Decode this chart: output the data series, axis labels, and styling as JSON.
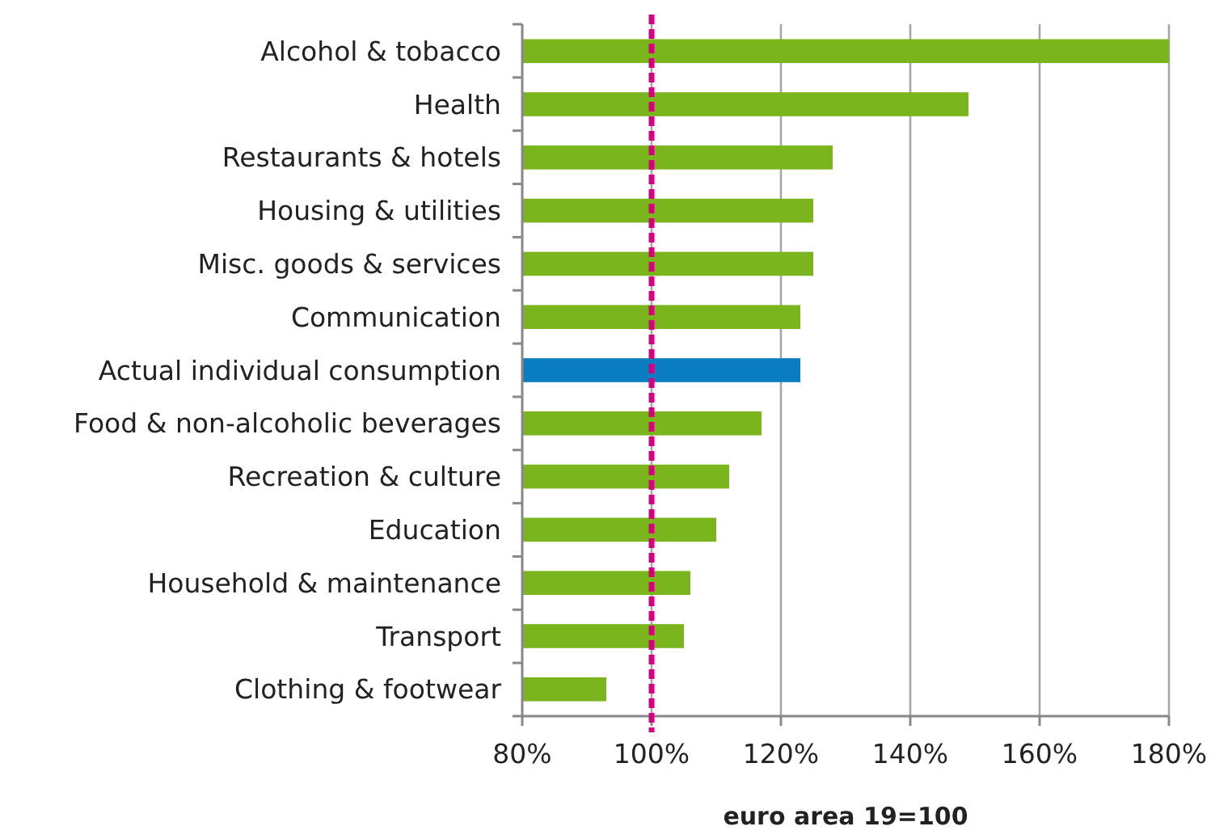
{
  "chart_data": {
    "type": "bar",
    "orientation": "horizontal",
    "xlabel": "euro area 19=100",
    "categories": [
      "Alcohol & tobacco",
      "Health",
      "Restaurants & hotels",
      "Housing & utilities",
      "Misc. goods & services",
      "Communication",
      "Actual individual consumption",
      "Food & non-alcoholic beverages",
      "Recreation & culture",
      "Education",
      "Household & maintenance",
      "Transport",
      "Clothing & footwear"
    ],
    "values": [
      180,
      149,
      128,
      125,
      125,
      123,
      123,
      117,
      112,
      110,
      106,
      105,
      93
    ],
    "colors": [
      "#7ab51d",
      "#7ab51d",
      "#7ab51d",
      "#7ab51d",
      "#7ab51d",
      "#7ab51d",
      "#0a7cc1",
      "#7ab51d",
      "#7ab51d",
      "#7ab51d",
      "#7ab51d",
      "#7ab51d",
      "#7ab51d"
    ],
    "xlim": [
      80,
      180
    ],
    "xticks": [
      {
        "value": 80,
        "label": "80%"
      },
      {
        "value": 100,
        "label": "100%"
      },
      {
        "value": 120,
        "label": "120%"
      },
      {
        "value": 140,
        "label": "140%"
      },
      {
        "value": 160,
        "label": "160%"
      },
      {
        "value": 180,
        "label": "180%"
      }
    ],
    "grid": "x",
    "ref_lines": [
      {
        "axis": "x",
        "value": 100,
        "color": "#d6007e",
        "line_style": "dashed"
      }
    ]
  }
}
